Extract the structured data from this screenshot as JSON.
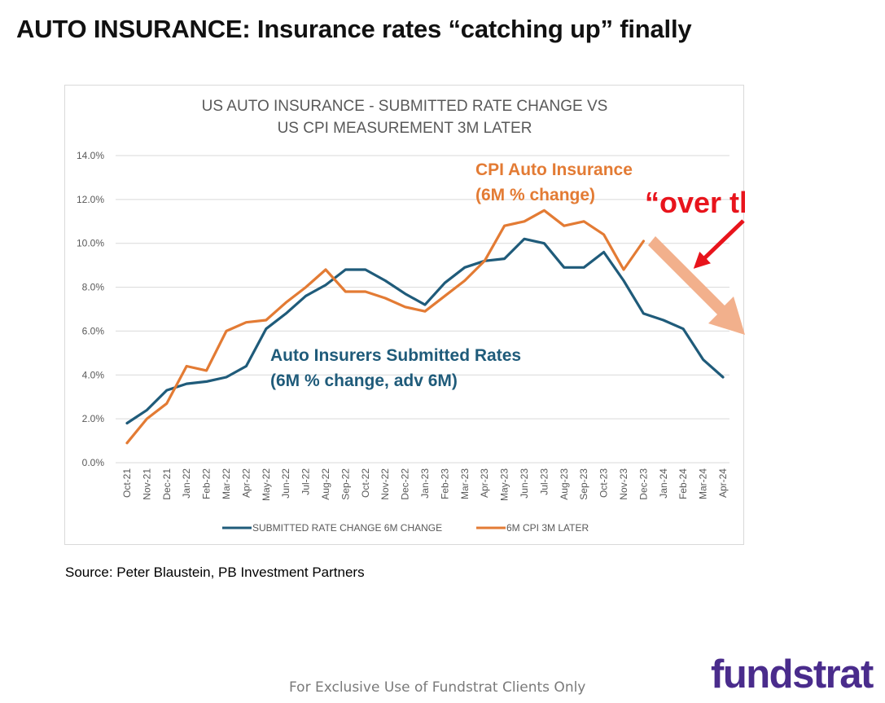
{
  "slide": {
    "title": "AUTO INSURANCE: Insurance rates “catching up” finally",
    "source": "Source: Peter Blaustein, PB Investment Partners",
    "footer": "For Exclusive Use of Fundstrat Clients Only",
    "logo": "fundstrat"
  },
  "chart_data": {
    "type": "line",
    "title_lines": [
      "US AUTO INSURANCE - SUBMITTED RATE CHANGE VS",
      "US CPI MEASUREMENT 3M LATER"
    ],
    "categories": [
      "Oct-21",
      "Nov-21",
      "Dec-21",
      "Jan-22",
      "Feb-22",
      "Mar-22",
      "Apr-22",
      "May-22",
      "Jun-22",
      "Jul-22",
      "Aug-22",
      "Sep-22",
      "Oct-22",
      "Nov-22",
      "Dec-22",
      "Jan-23",
      "Feb-23",
      "Mar-23",
      "Apr-23",
      "May-23",
      "Jun-23",
      "Jul-23",
      "Aug-23",
      "Sep-23",
      "Oct-23",
      "Nov-23",
      "Dec-23",
      "Jan-24",
      "Feb-24",
      "Mar-24",
      "Apr-24"
    ],
    "y_ticks": [
      "0.0%",
      "2.0%",
      "4.0%",
      "6.0%",
      "8.0%",
      "10.0%",
      "12.0%",
      "14.0%"
    ],
    "ylim": [
      0,
      14
    ],
    "grid": true,
    "series": [
      {
        "name": "SUBMITTED RATE CHANGE 6M CHANGE",
        "color": "#1f5b7a",
        "values": [
          1.8,
          2.4,
          3.3,
          3.6,
          3.7,
          3.9,
          4.4,
          6.1,
          6.8,
          7.6,
          8.1,
          8.8,
          8.8,
          8.3,
          7.7,
          7.2,
          8.2,
          8.9,
          9.2,
          9.3,
          10.2,
          10.0,
          8.9,
          8.9,
          9.6,
          8.3,
          6.8,
          6.5,
          6.1,
          4.7,
          3.9
        ]
      },
      {
        "name": "6M CPI 3M LATER",
        "color": "#e37b34",
        "values": [
          0.9,
          2.0,
          2.7,
          4.4,
          4.2,
          6.0,
          6.4,
          6.5,
          7.3,
          8.0,
          8.8,
          7.8,
          7.8,
          7.5,
          7.1,
          6.9,
          7.6,
          8.3,
          9.2,
          10.8,
          11.0,
          11.5,
          10.8,
          11.0,
          10.4,
          8.8,
          10.1,
          null,
          null,
          null,
          null
        ]
      }
    ],
    "legend": {
      "position": "bottom",
      "labels": [
        "SUBMITTED RATE CHANGE 6M CHANGE",
        "6M CPI 3M LATER"
      ]
    },
    "annotations": {
      "cpi_label": [
        "CPI Auto Insurance",
        "(6M % change)"
      ],
      "submitted_label": [
        "Auto Insurers Submitted Rates",
        "(6M % change, adv 6M)"
      ],
      "peak_label": "“over the peak”",
      "peak_color": "#e8141c",
      "trend_arrow_color": "#f2b08c"
    }
  }
}
